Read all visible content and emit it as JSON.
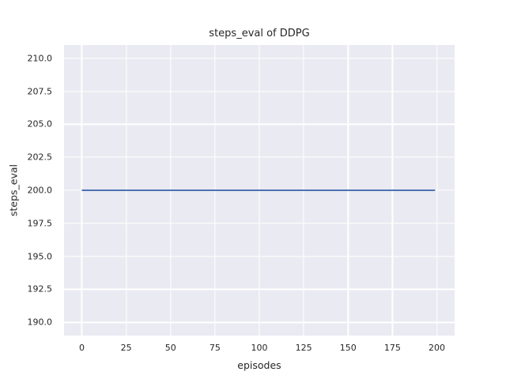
{
  "chart_data": {
    "type": "line",
    "title": "steps_eval of DDPG",
    "xlabel": "episodes",
    "ylabel": "steps_eval",
    "xlim": [
      -10,
      210
    ],
    "ylim": [
      189,
      211
    ],
    "xtick_values": [
      0,
      25,
      50,
      75,
      100,
      125,
      150,
      175,
      200
    ],
    "xtick_labels": [
      "0",
      "25",
      "50",
      "75",
      "100",
      "125",
      "150",
      "175",
      "200"
    ],
    "ytick_values": [
      190,
      192.5,
      195,
      197.5,
      200,
      202.5,
      205,
      207.5,
      210
    ],
    "ytick_labels": [
      "190.0",
      "192.5",
      "195.0",
      "197.5",
      "200.0",
      "202.5",
      "205.0",
      "207.5",
      "210.0"
    ],
    "grid": true,
    "legend": "none",
    "colors": {
      "axes_background": "#eaeaf2",
      "grid": "#ffffff",
      "text": "#262626",
      "figure_background": "#ffffff"
    },
    "series": [
      {
        "name": "DDPG steps_eval",
        "color": "#4c72b0",
        "x": [
          0,
          199
        ],
        "y": [
          200,
          200
        ],
        "note": "constant value 200 across all episodes 0-199"
      }
    ]
  }
}
